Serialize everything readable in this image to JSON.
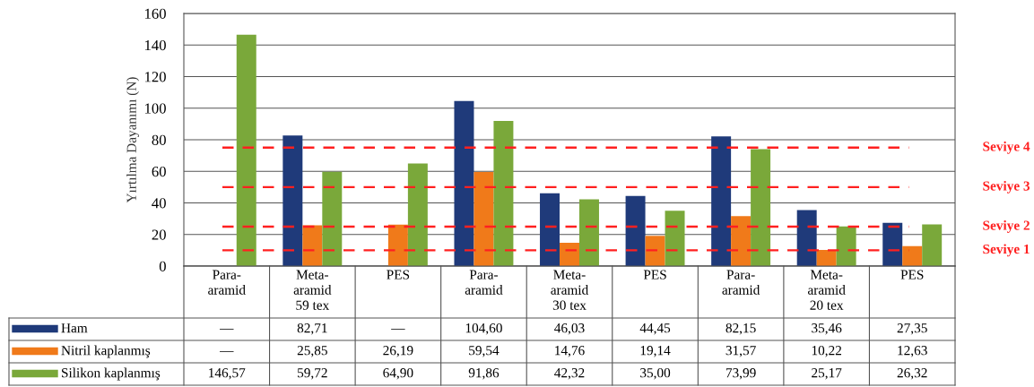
{
  "chart_data": {
    "type": "bar",
    "ylabel": "Yırtılma Dayanımı (N)",
    "categories": [
      "Para-\naramid",
      "Meta-\naramid\n59 tex",
      "PES",
      "Para-\naramid",
      "Meta-\naramid\n30 tex",
      "PES",
      "Para-\naramid",
      "Meta-\naramid\n20 tex",
      "PES"
    ],
    "series": [
      {
        "name": "Ham",
        "color": "#1f3a7a",
        "values": [
          null,
          82.71,
          null,
          104.6,
          46.03,
          44.45,
          82.15,
          35.46,
          27.35
        ],
        "value_labels": [
          "—",
          "82,71",
          "—",
          "104,60",
          "46,03",
          "44,45",
          "82,15",
          "35,46",
          "27,35"
        ]
      },
      {
        "name": "Nitril kaplanmış",
        "color": "#f07a1a",
        "values": [
          null,
          25.85,
          26.19,
          59.54,
          14.76,
          19.14,
          31.57,
          10.22,
          12.63
        ],
        "value_labels": [
          "—",
          "25,85",
          "26,19",
          "59,54",
          "14,76",
          "19,14",
          "31,57",
          "10,22",
          "12,63"
        ]
      },
      {
        "name": "Silikon kaplanmış",
        "color": "#7aa83a",
        "values": [
          146.57,
          59.72,
          64.9,
          91.86,
          42.32,
          35.0,
          73.99,
          25.17,
          26.32
        ],
        "value_labels": [
          "146,57",
          "59,72",
          "64,90",
          "91,86",
          "42,32",
          "35,00",
          "73,99",
          "25,17",
          "26,32"
        ]
      }
    ],
    "ylim": [
      0,
      160
    ],
    "yticks": [
      0,
      20,
      40,
      60,
      80,
      100,
      120,
      140,
      160
    ],
    "grid": "y",
    "legend": "bottom left",
    "ref_lines": [
      {
        "axis": "y",
        "value": 75,
        "label": "Seviye 4",
        "color": "#ff2020",
        "line_style": "dashed"
      },
      {
        "axis": "y",
        "value": 50,
        "label": "Seviye 3",
        "color": "#ff2020",
        "line_style": "dashed"
      },
      {
        "axis": "y",
        "value": 25,
        "label": "Seviye 2",
        "color": "#ff2020",
        "line_style": "dashed"
      },
      {
        "axis": "y",
        "value": 10,
        "label": "Seviye 1",
        "color": "#ff2020",
        "line_style": "dashed"
      }
    ]
  }
}
